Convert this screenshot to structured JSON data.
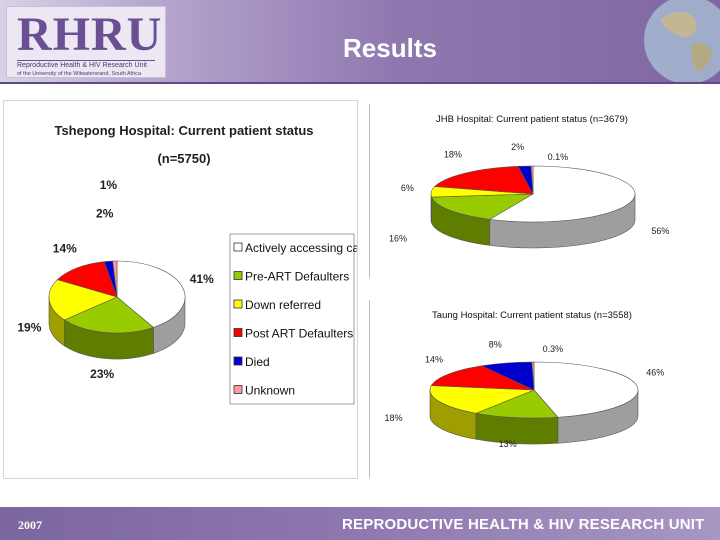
{
  "header": {
    "logo": "RHRU",
    "logo_sub1": "Reproductive Health & HIV Research Unit",
    "logo_sub2": "of the University of the Witwatersrand, South Africa",
    "title": "Results"
  },
  "footer": {
    "year": "2007",
    "org": "REPRODUCTIVE HEALTH & HIV RESEARCH UNIT"
  },
  "chart_data": [
    {
      "type": "pie",
      "title": "Tshepong Hospital:  Current patient status",
      "subtitle": "(n=5750)",
      "categories": [
        "Actively accessing care",
        "Pre-ART Defaulters",
        "Down referred",
        "Post ART Defaulters",
        "Died",
        "Unknown"
      ],
      "values": [
        41,
        23,
        19,
        14,
        2,
        1
      ],
      "labels": [
        "41%",
        "23%",
        "19%",
        "14%",
        "2%",
        "1%"
      ],
      "colors": [
        "#ffffff",
        "#99cc00",
        "#ffff00",
        "#ff0000",
        "#0000cc",
        "#ff9999"
      ],
      "legend": "right"
    },
    {
      "type": "pie",
      "title": "JHB Hospital: Current patient status (n=3679)",
      "values": [
        56,
        16,
        6,
        18,
        2,
        0.1
      ],
      "labels": [
        "56%",
        "16%",
        "6%",
        "18%",
        "2%",
        "0.1%"
      ],
      "colors": [
        "#ffffff",
        "#99cc00",
        "#ffff00",
        "#ff0000",
        "#0000cc",
        "#ff9999"
      ]
    },
    {
      "type": "pie",
      "title": "Taung Hospital: Current patient status (n=3558)",
      "values": [
        46,
        13,
        18,
        14,
        8,
        0.3
      ],
      "labels": [
        "46%",
        "13%",
        "18%",
        "14%",
        "8%",
        "0.3%"
      ],
      "colors": [
        "#ffffff",
        "#99cc00",
        "#ffff00",
        "#ff0000",
        "#0000cc",
        "#ff9999"
      ]
    }
  ]
}
